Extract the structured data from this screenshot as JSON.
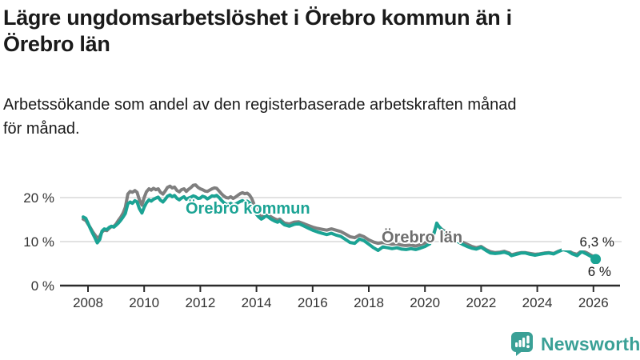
{
  "header": {
    "title_lines": [
      "Lägre ungdomsarbetslöshet i Örebro kommun än i",
      "Örebro län"
    ],
    "subtitle_lines": [
      "Arbetssökande som andel av den registerbaserade arbetskraften månad",
      "för månad."
    ]
  },
  "branding": {
    "name": "Newsworthy",
    "logo_icon": "bar-chart-speech-bubble",
    "logo_color": "#3aa096"
  },
  "colors": {
    "kommun_line": "#1ba394",
    "lan_line": "#7f7f7f",
    "grid": "#d8d8d8",
    "axis": "#2b2b2b",
    "tick_text": "#333333",
    "text": "#1a1a1a"
  },
  "chart_data": {
    "type": "line",
    "x_axis": {
      "ticks": [
        2008,
        2010,
        2012,
        2014,
        2016,
        2018,
        2020,
        2022,
        2024,
        2026
      ],
      "range": [
        2007.7,
        2026.5
      ]
    },
    "y_axis": {
      "ticks": [
        {
          "value": 0,
          "label": "0 %"
        },
        {
          "value": 10,
          "label": "10 %"
        },
        {
          "value": 20,
          "label": "20 %"
        }
      ],
      "range": [
        0,
        24
      ],
      "grid": true
    },
    "x_years": [
      2007.83,
      2007.92,
      2008.0,
      2008.08,
      2008.17,
      2008.25,
      2008.33,
      2008.42,
      2008.5,
      2008.58,
      2008.67,
      2008.75,
      2008.83,
      2008.92,
      2009.0,
      2009.08,
      2009.17,
      2009.25,
      2009.33,
      2009.42,
      2009.5,
      2009.58,
      2009.67,
      2009.75,
      2009.83,
      2009.92,
      2010.0,
      2010.08,
      2010.17,
      2010.25,
      2010.33,
      2010.42,
      2010.5,
      2010.58,
      2010.67,
      2010.75,
      2010.83,
      2010.92,
      2011.0,
      2011.08,
      2011.17,
      2011.25,
      2011.33,
      2011.42,
      2011.5,
      2011.58,
      2011.67,
      2011.75,
      2011.83,
      2011.92,
      2012.0,
      2012.08,
      2012.17,
      2012.25,
      2012.33,
      2012.42,
      2012.5,
      2012.58,
      2012.67,
      2012.75,
      2012.83,
      2012.92,
      2013.0,
      2013.08,
      2013.17,
      2013.25,
      2013.33,
      2013.42,
      2013.5,
      2013.58,
      2013.67,
      2013.75,
      2013.83,
      2013.92,
      2014.0,
      2014.08,
      2014.17,
      2014.25,
      2014.33,
      2014.42,
      2014.5,
      2014.58,
      2014.67,
      2014.75,
      2014.83,
      2014.92,
      2015.0,
      2015.17,
      2015.33,
      2015.5,
      2015.67,
      2015.83,
      2016.0,
      2016.17,
      2016.33,
      2016.5,
      2016.67,
      2016.83,
      2017.0,
      2017.17,
      2017.33,
      2017.5,
      2017.67,
      2017.83,
      2018.0,
      2018.17,
      2018.33,
      2018.5,
      2018.67,
      2018.83,
      2019.0,
      2019.17,
      2019.33,
      2019.5,
      2019.67,
      2019.83,
      2020.0,
      2020.17,
      2020.33,
      2020.42,
      2020.5,
      2020.58,
      2020.67,
      2020.75,
      2020.83,
      2020.92,
      2021.0,
      2021.17,
      2021.33,
      2021.5,
      2021.67,
      2021.83,
      2022.0,
      2022.17,
      2022.33,
      2022.5,
      2022.67,
      2022.83,
      2023.0,
      2023.08,
      2023.25,
      2023.42,
      2023.58,
      2023.75,
      2023.92,
      2024.08,
      2024.25,
      2024.42,
      2024.58,
      2024.75,
      2024.92,
      2025.08,
      2025.25,
      2025.42,
      2025.58,
      2025.75,
      2025.92,
      2026.08
    ],
    "series": [
      {
        "name": "Örebro kommun",
        "color": "#1ba394",
        "end_label": "6 %",
        "end_value": 6.0,
        "end_dot": true,
        "values": [
          15.6,
          15.3,
          14.2,
          13.0,
          11.8,
          10.8,
          9.7,
          10.5,
          12.4,
          12.9,
          12.7,
          13.2,
          13.5,
          13.3,
          13.7,
          14.2,
          14.9,
          15.6,
          16.4,
          18.6,
          19.0,
          18.7,
          19.3,
          19.0,
          17.5,
          16.5,
          17.8,
          18.8,
          19.5,
          19.2,
          19.6,
          19.9,
          20.1,
          19.4,
          19.0,
          19.6,
          20.3,
          20.6,
          20.2,
          20.5,
          19.8,
          19.5,
          19.9,
          20.2,
          19.6,
          19.9,
          20.1,
          20.4,
          20.2,
          19.8,
          19.9,
          20.3,
          20.1,
          19.7,
          20.0,
          20.4,
          20.3,
          20.5,
          20.0,
          19.4,
          18.9,
          18.5,
          18.4,
          18.7,
          18.3,
          18.5,
          18.8,
          19.1,
          19.3,
          19.0,
          19.2,
          18.8,
          18.2,
          17.0,
          16.2,
          15.6,
          15.1,
          15.4,
          15.9,
          15.6,
          15.2,
          14.9,
          14.6,
          14.4,
          14.7,
          14.2,
          13.8,
          13.5,
          13.9,
          14.1,
          13.6,
          13.1,
          12.6,
          12.2,
          11.9,
          11.6,
          11.9,
          11.5,
          11.2,
          10.5,
          9.8,
          9.6,
          10.6,
          10.2,
          9.4,
          8.6,
          8.0,
          8.8,
          8.6,
          8.4,
          8.6,
          8.3,
          8.2,
          8.4,
          8.2,
          8.5,
          8.9,
          9.5,
          12.0,
          14.2,
          13.4,
          12.8,
          12.3,
          11.9,
          11.5,
          11.1,
          10.7,
          10.0,
          9.4,
          8.9,
          8.5,
          8.3,
          8.7,
          8.0,
          7.4,
          7.3,
          7.4,
          7.6,
          7.2,
          6.8,
          7.1,
          7.4,
          7.4,
          7.1,
          6.9,
          7.1,
          7.3,
          7.4,
          7.2,
          7.7,
          8.2,
          7.9,
          7.2,
          6.8,
          7.7,
          7.2,
          6.6,
          6.0
        ]
      },
      {
        "name": "Örebro län",
        "color": "#7f7f7f",
        "end_label": "6,3 %",
        "end_value": 6.3,
        "end_dot": false,
        "values": [
          15.1,
          14.8,
          14.0,
          13.2,
          12.2,
          11.5,
          10.8,
          11.2,
          12.2,
          12.6,
          12.5,
          13.0,
          13.4,
          13.5,
          14.0,
          14.8,
          15.6,
          16.5,
          17.8,
          20.8,
          21.4,
          21.2,
          21.6,
          21.2,
          19.5,
          18.3,
          20.0,
          21.3,
          22.0,
          21.7,
          22.1,
          21.8,
          22.0,
          21.2,
          20.8,
          21.5,
          22.3,
          22.6,
          22.2,
          22.4,
          21.6,
          21.3,
          21.8,
          22.0,
          21.4,
          21.9,
          22.3,
          22.8,
          22.9,
          22.3,
          22.0,
          21.8,
          21.5,
          21.4,
          21.7,
          22.0,
          22.2,
          22.1,
          21.5,
          20.9,
          20.4,
          20.0,
          19.9,
          20.2,
          19.8,
          20.1,
          20.5,
          20.9,
          21.1,
          20.9,
          21.0,
          20.6,
          19.8,
          18.4,
          17.2,
          16.3,
          15.6,
          15.8,
          16.2,
          16.0,
          15.7,
          15.4,
          15.1,
          14.9,
          15.1,
          14.6,
          14.2,
          14.0,
          14.4,
          14.5,
          14.1,
          13.7,
          13.3,
          13.0,
          12.8,
          12.6,
          12.9,
          12.6,
          12.3,
          11.7,
          11.1,
          10.9,
          11.5,
          11.1,
          10.4,
          9.9,
          9.6,
          9.8,
          9.6,
          9.4,
          9.5,
          9.2,
          9.1,
          9.2,
          9.0,
          9.3,
          9.7,
          10.2,
          12.2,
          13.9,
          13.4,
          12.9,
          12.5,
          12.2,
          11.8,
          11.4,
          11.0,
          10.4,
          9.9,
          9.4,
          8.9,
          8.6,
          8.9,
          8.2,
          7.7,
          7.5,
          7.6,
          7.8,
          7.4,
          7.0,
          7.3,
          7.5,
          7.5,
          7.3,
          7.1,
          7.2,
          7.4,
          7.5,
          7.3,
          7.8,
          8.2,
          8.0,
          7.4,
          7.1,
          7.9,
          7.5,
          6.9,
          6.3
        ]
      }
    ]
  }
}
